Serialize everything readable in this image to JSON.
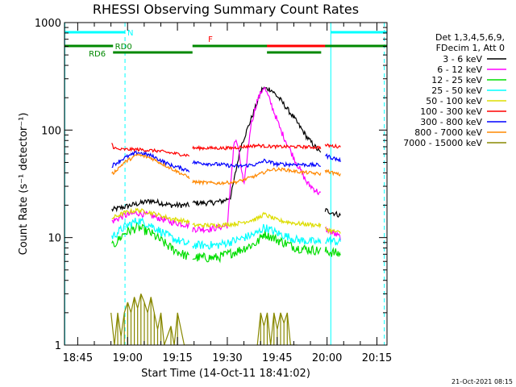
{
  "chart_data": {
    "type": "line",
    "title": "RHESSI Observing Summary Count Rates",
    "xlabel": "Start Time (14-Oct-11 18:41:02)",
    "ylabel": "Count Rate (s⁻¹ detector⁻¹)",
    "yscale": "log",
    "ylim": [
      1,
      1000
    ],
    "xlim_minutes_after_start": [
      0,
      97
    ],
    "x_ticks": [
      {
        "label": "18:45",
        "t": 3.97
      },
      {
        "label": "19:00",
        "t": 18.97
      },
      {
        "label": "19:15",
        "t": 33.97
      },
      {
        "label": "19:30",
        "t": 48.97
      },
      {
        "label": "19:45",
        "t": 63.97
      },
      {
        "label": "20:00",
        "t": 78.97
      },
      {
        "label": "20:15",
        "t": 93.97
      }
    ],
    "y_ticks": [
      {
        "label": "1",
        "v": 1
      },
      {
        "label": "10",
        "v": 10
      },
      {
        "label": "100",
        "v": 100
      },
      {
        "label": "1000",
        "v": 1000
      }
    ],
    "legend": {
      "position": "top-right",
      "header": [
        "Det 1,3,4,5,6,9,",
        "FDecim 1, Att 0"
      ],
      "entries": [
        {
          "label": "3 - 6 keV",
          "color": "#000000"
        },
        {
          "label": "6 - 12 keV",
          "color": "#ff00ff"
        },
        {
          "label": "12 - 25 keV",
          "color": "#00dd00"
        },
        {
          "label": "25 - 50 keV",
          "color": "#00ffff"
        },
        {
          "label": "50 - 100 keV",
          "color": "#dddd00"
        },
        {
          "label": "100 - 300 keV",
          "color": "#ff0000"
        },
        {
          "label": "300 - 800 keV",
          "color": "#0000ff"
        },
        {
          "label": "800 - 7000 keV",
          "color": "#ff8800"
        },
        {
          "label": "7000 - 15000 keV",
          "color": "#888800"
        }
      ]
    },
    "flag_bars": [
      {
        "label": "N",
        "color": "#00ffff",
        "level": 1,
        "segments": [
          [
            0,
            18.2
          ],
          [
            80.1,
            97
          ]
        ]
      },
      {
        "label": "F",
        "color": "#ff0000",
        "level": 2,
        "segments": [
          [
            50,
            79
          ]
        ]
      },
      {
        "label": "RD0",
        "color": "#008800",
        "level": 2,
        "segments": [
          [
            0,
            14.6
          ],
          [
            38.5,
            60.9
          ],
          [
            78.4,
            97
          ]
        ]
      },
      {
        "label": "RD6",
        "color": "#008800",
        "level": 3,
        "segments": [
          [
            14.6,
            38.5
          ],
          [
            60.9,
            77.2
          ]
        ]
      }
    ],
    "vertical_markers": [
      {
        "t": 0.1,
        "color": "#00ffff",
        "style": "solid"
      },
      {
        "t": 18.2,
        "color": "#00ffff",
        "style": "dashed"
      },
      {
        "t": 80.1,
        "color": "#00ffff",
        "style": "solid"
      },
      {
        "t": 96.2,
        "color": "#00ffff",
        "style": "dashed"
      }
    ],
    "data_intervals": [
      [
        14.0,
        37.6
      ],
      [
        38.5,
        77.2
      ],
      [
        78.4,
        83.2
      ]
    ],
    "series": [
      {
        "name": "3 - 6 keV",
        "color": "#000000",
        "noise": 0.025,
        "points": [
          [
            14.0,
            18
          ],
          [
            20,
            20
          ],
          [
            26,
            22
          ],
          [
            32,
            20
          ],
          [
            37.6,
            20
          ],
          [
            38.5,
            21
          ],
          [
            44,
            21
          ],
          [
            48,
            22
          ],
          [
            50,
            24
          ],
          [
            53,
            70
          ],
          [
            57,
            150
          ],
          [
            59.5,
            245
          ],
          [
            62,
            240
          ],
          [
            65,
            190
          ],
          [
            69,
            130
          ],
          [
            73,
            85
          ],
          [
            77.2,
            60
          ],
          [
            78.4,
            18
          ],
          [
            83.2,
            16
          ]
        ]
      },
      {
        "name": "6 - 12 keV",
        "color": "#ff00ff",
        "noise": 0.03,
        "points": [
          [
            14.0,
            14
          ],
          [
            18,
            16
          ],
          [
            22,
            17
          ],
          [
            26,
            16
          ],
          [
            32,
            14
          ],
          [
            37.6,
            13
          ],
          [
            38.5,
            12
          ],
          [
            44,
            12
          ],
          [
            49,
            13
          ],
          [
            51,
            80
          ],
          [
            52,
            75
          ],
          [
            54,
            30
          ],
          [
            56,
            110
          ],
          [
            58,
            190
          ],
          [
            60,
            255
          ],
          [
            62,
            180
          ],
          [
            65,
            100
          ],
          [
            69,
            55
          ],
          [
            73,
            32
          ],
          [
            77.2,
            25
          ],
          [
            78.4,
            12
          ],
          [
            83.2,
            10
          ]
        ]
      },
      {
        "name": "12 - 25 keV",
        "color": "#00dd00",
        "noise": 0.045,
        "points": [
          [
            14.0,
            8
          ],
          [
            18,
            11
          ],
          [
            22,
            12.5
          ],
          [
            26,
            11
          ],
          [
            32,
            8
          ],
          [
            37.6,
            6.5
          ],
          [
            38.5,
            6.5
          ],
          [
            46,
            6.5
          ],
          [
            52,
            7.5
          ],
          [
            58,
            9
          ],
          [
            60,
            11
          ],
          [
            64,
            9.5
          ],
          [
            70,
            8
          ],
          [
            77.2,
            7.5
          ],
          [
            78.4,
            7.5
          ],
          [
            83.2,
            7
          ]
        ]
      },
      {
        "name": "25 - 50 keV",
        "color": "#00ffff",
        "noise": 0.04,
        "points": [
          [
            14.0,
            10
          ],
          [
            18,
            12.5
          ],
          [
            22,
            14.5
          ],
          [
            26,
            13
          ],
          [
            32,
            10
          ],
          [
            37.6,
            8.5
          ],
          [
            38.5,
            8.5
          ],
          [
            46,
            8.5
          ],
          [
            52,
            9.5
          ],
          [
            58,
            11
          ],
          [
            60,
            12.5
          ],
          [
            64,
            11
          ],
          [
            70,
            9.5
          ],
          [
            77.2,
            9
          ],
          [
            78.4,
            9.5
          ],
          [
            83.2,
            9
          ]
        ]
      },
      {
        "name": "50 - 100 keV",
        "color": "#dddd00",
        "noise": 0.02,
        "points": [
          [
            14.0,
            15
          ],
          [
            18,
            17
          ],
          [
            22,
            18
          ],
          [
            26,
            17
          ],
          [
            32,
            15
          ],
          [
            37.6,
            14
          ],
          [
            38.5,
            13
          ],
          [
            46,
            13
          ],
          [
            52,
            13.5
          ],
          [
            58,
            15
          ],
          [
            60,
            16.5
          ],
          [
            64,
            14.5
          ],
          [
            70,
            13.5
          ],
          [
            77.2,
            13
          ],
          [
            78.4,
            12
          ],
          [
            83.2,
            11
          ]
        ]
      },
      {
        "name": "100 - 300 keV",
        "color": "#ff0000",
        "noise": 0.015,
        "points": [
          [
            14.0,
            80
          ],
          [
            14.6,
            70
          ],
          [
            16,
            66
          ],
          [
            22,
            66
          ],
          [
            28,
            64
          ],
          [
            34,
            60
          ],
          [
            37.6,
            58
          ],
          [
            38.5,
            68
          ],
          [
            44,
            68
          ],
          [
            50,
            68
          ],
          [
            54,
            70
          ],
          [
            58,
            72
          ],
          [
            60,
            71
          ],
          [
            64,
            70
          ],
          [
            70,
            70
          ],
          [
            77.2,
            69
          ],
          [
            78.4,
            72
          ],
          [
            83.2,
            70
          ]
        ]
      },
      {
        "name": "300 - 800 keV",
        "color": "#0000ff",
        "noise": 0.018,
        "points": [
          [
            14.0,
            46
          ],
          [
            18,
            55
          ],
          [
            22,
            62
          ],
          [
            26,
            58
          ],
          [
            32,
            47
          ],
          [
            37.6,
            42
          ],
          [
            38.5,
            50
          ],
          [
            46,
            48
          ],
          [
            52,
            46
          ],
          [
            58,
            48
          ],
          [
            60,
            52
          ],
          [
            64,
            48
          ],
          [
            70,
            48
          ],
          [
            77.2,
            47
          ],
          [
            78.4,
            58
          ],
          [
            83.2,
            52
          ]
        ]
      },
      {
        "name": "800 - 7000 keV",
        "color": "#ff8800",
        "noise": 0.015,
        "points": [
          [
            14.0,
            38
          ],
          [
            18,
            50
          ],
          [
            22,
            59
          ],
          [
            26,
            55
          ],
          [
            32,
            44
          ],
          [
            37.6,
            36
          ],
          [
            38.5,
            33
          ],
          [
            46,
            32
          ],
          [
            52,
            33
          ],
          [
            58,
            38
          ],
          [
            62,
            43
          ],
          [
            66,
            43
          ],
          [
            70,
            41
          ],
          [
            77.2,
            39
          ],
          [
            78.4,
            42
          ],
          [
            83.2,
            38
          ]
        ]
      },
      {
        "name": "7000 - 15000 keV",
        "color": "#888800",
        "noise": 0.0,
        "points": [
          [
            14.0,
            2
          ],
          [
            15,
            1
          ],
          [
            16,
            2
          ],
          [
            17,
            1.2
          ],
          [
            18,
            2
          ],
          [
            19,
            2.5
          ],
          [
            20,
            2
          ],
          [
            21,
            2.8
          ],
          [
            22,
            2.2
          ],
          [
            23,
            3
          ],
          [
            24,
            2.5
          ],
          [
            25,
            2
          ],
          [
            26,
            2.8
          ],
          [
            27,
            2
          ],
          [
            28,
            1.4
          ],
          [
            29,
            2
          ],
          [
            30,
            1
          ],
          [
            32,
            1.5
          ],
          [
            33,
            1
          ],
          [
            34,
            2
          ],
          [
            36,
            1
          ],
          [
            37.6,
            1
          ],
          [
            38.5,
            1
          ],
          [
            58,
            1
          ],
          [
            59,
            2
          ],
          [
            60,
            1.5
          ],
          [
            61,
            2
          ],
          [
            62,
            1
          ],
          [
            63,
            2
          ],
          [
            64,
            1.4
          ],
          [
            65,
            2
          ],
          [
            66,
            1.6
          ],
          [
            67,
            2
          ],
          [
            68,
            1
          ],
          [
            70,
            1
          ],
          [
            77.2,
            1
          ]
        ]
      }
    ]
  },
  "footer": {
    "timestamp": "21-Oct-2021 08:15"
  }
}
